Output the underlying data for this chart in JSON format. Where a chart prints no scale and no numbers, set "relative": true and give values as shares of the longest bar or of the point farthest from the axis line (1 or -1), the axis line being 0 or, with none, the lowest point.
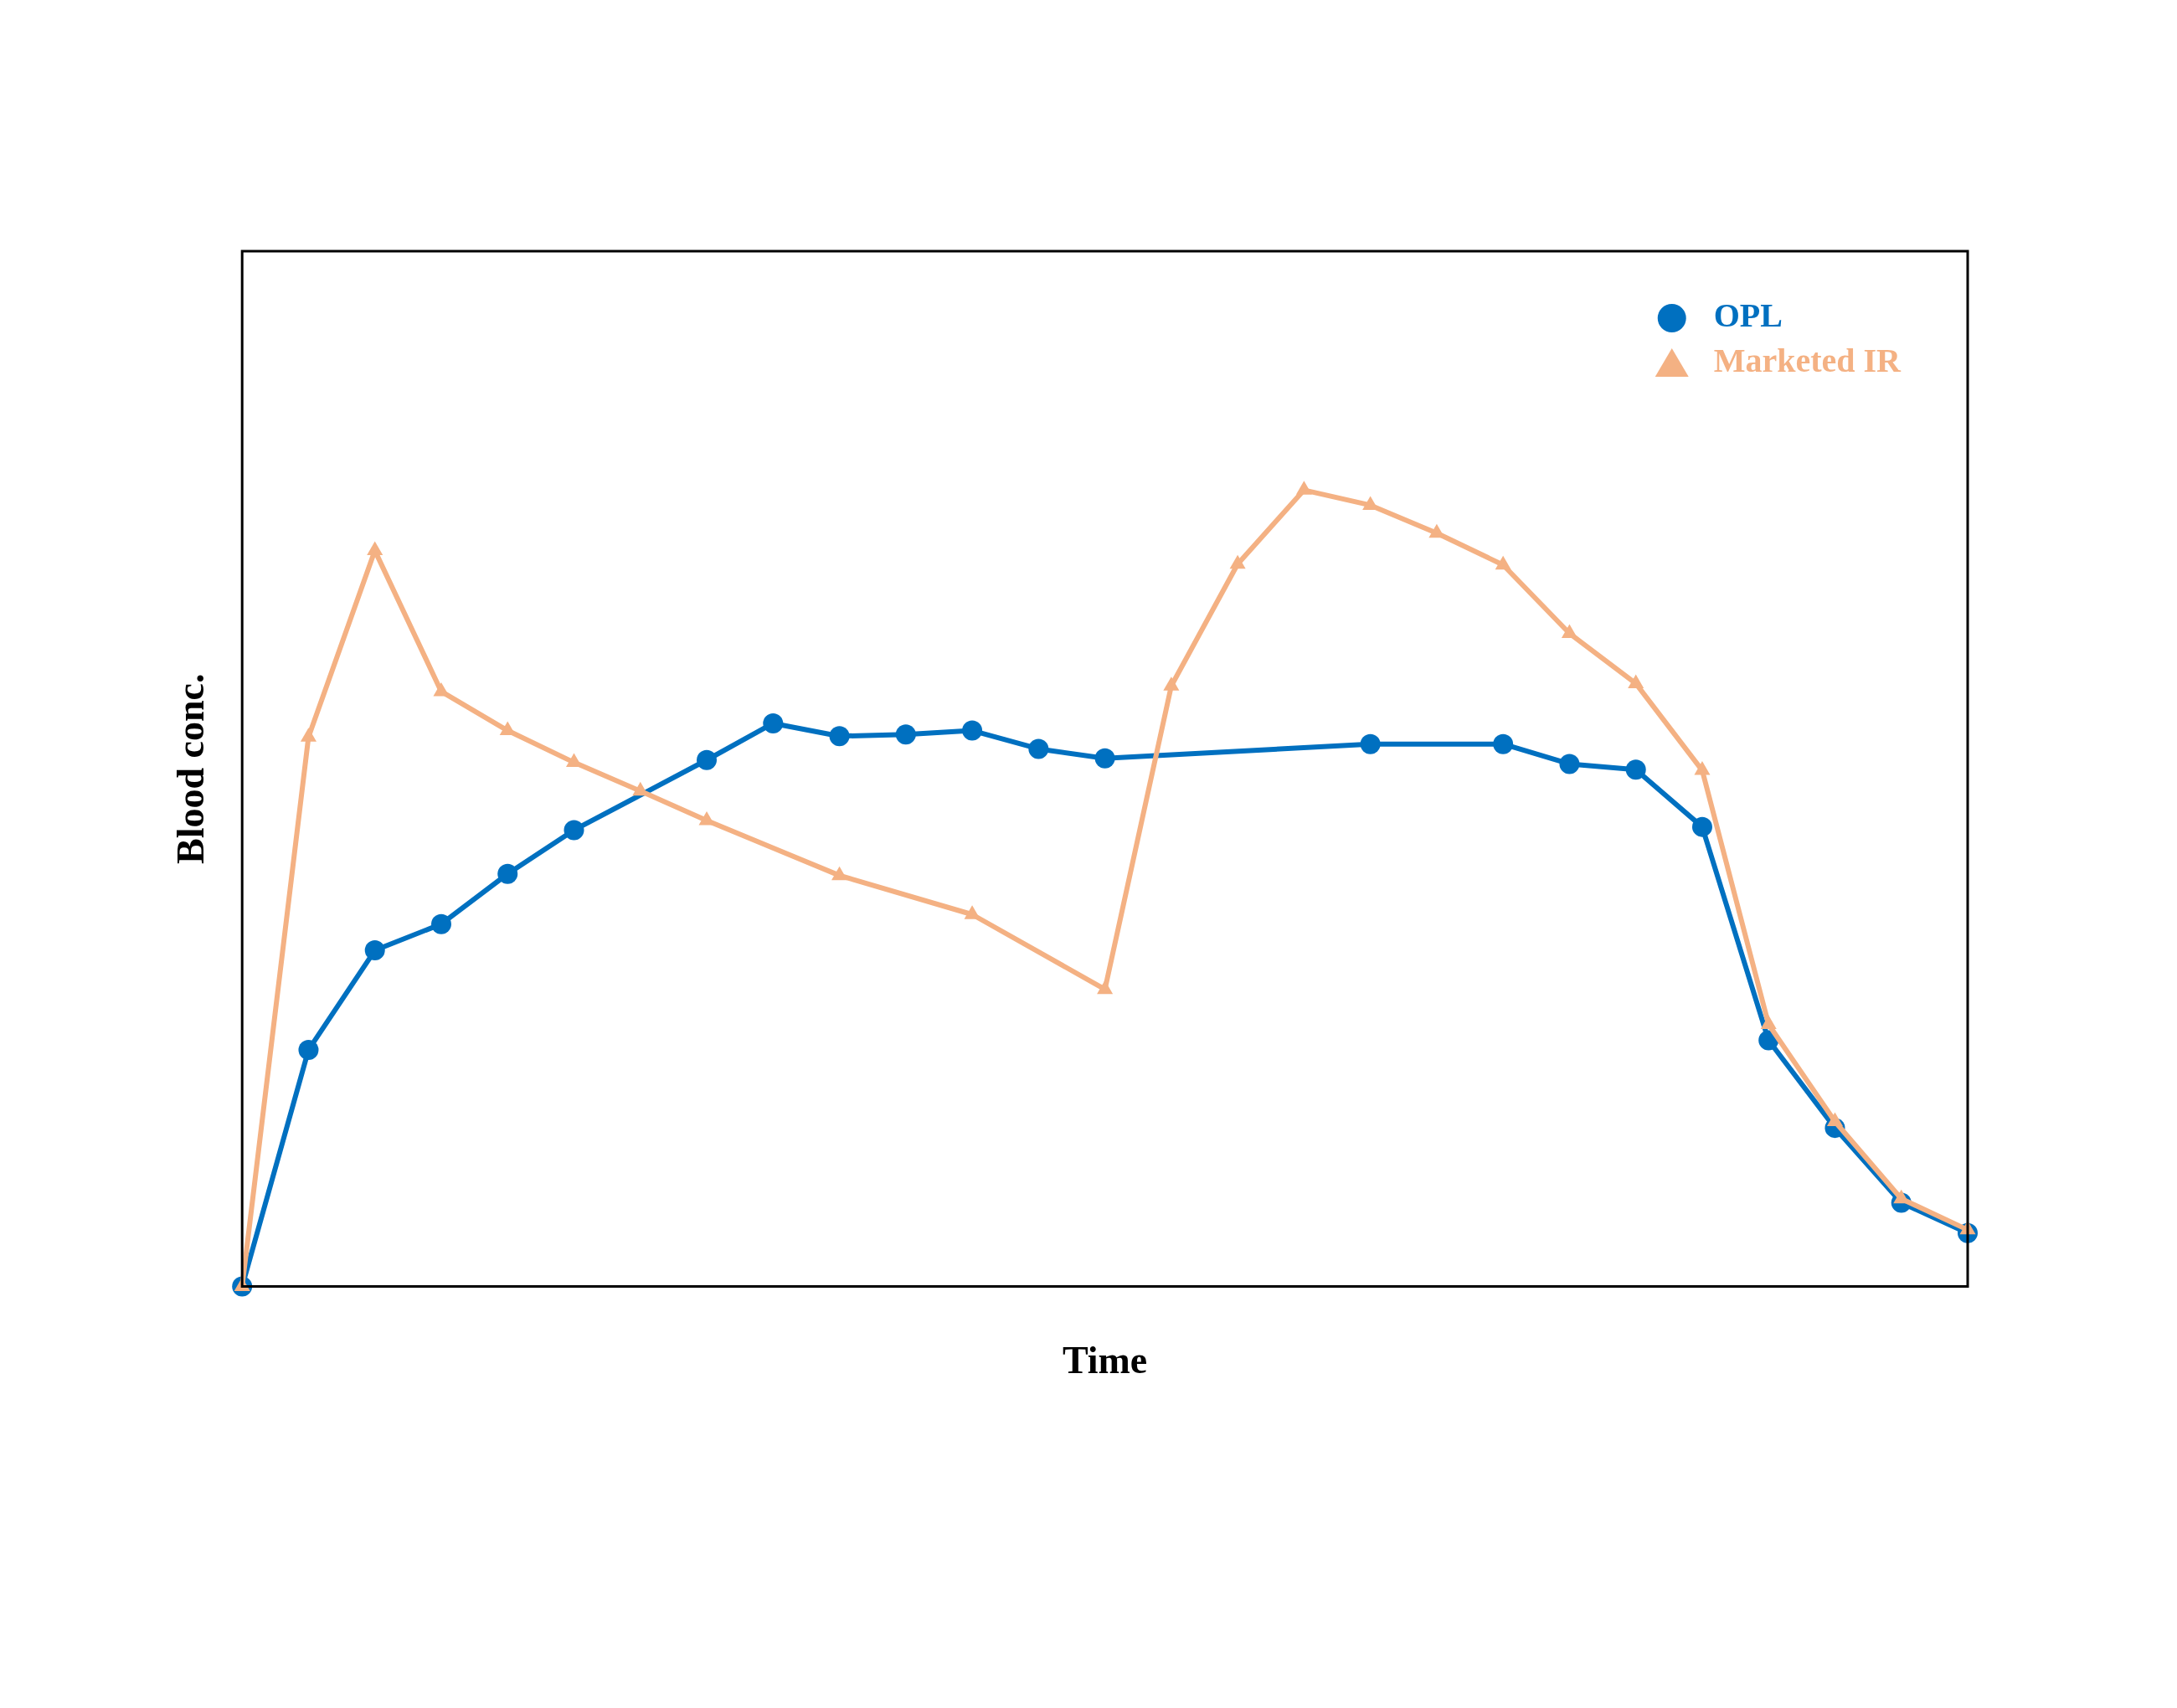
{
  "chart_data": {
    "type": "line",
    "xlabel": "Time",
    "ylabel": "Blood conc.",
    "relative": true,
    "grid": false,
    "legend": "top right",
    "categories": [
      null,
      null,
      null,
      null,
      null,
      null,
      null,
      null,
      null,
      null,
      null,
      null,
      null,
      null,
      null,
      null,
      null,
      null,
      null,
      null,
      null,
      null,
      null,
      null,
      null,
      null,
      null
    ],
    "series": [
      {
        "name": "OPL",
        "color": "#0070c0",
        "marker": "circle",
        "values": [
          0,
          0.297,
          0.422,
          0.455,
          0.518,
          0.573,
          null,
          0.661,
          0.707,
          0.691,
          0.693,
          0.698,
          0.675,
          0.663,
          null,
          null,
          null,
          0.681,
          null,
          0.681,
          0.656,
          0.649,
          0.577,
          0.309,
          0.199,
          0.105,
          0.067
        ]
      },
      {
        "name": "Marketed IR",
        "color": "#f4b183",
        "marker": "triangle",
        "values": [
          0,
          0.69,
          0.924,
          0.747,
          0.698,
          0.658,
          0.622,
          0.585,
          null,
          0.516,
          null,
          0.467,
          null,
          0.373,
          0.754,
          0.907,
          1,
          0.981,
          0.946,
          0.906,
          0.82,
          0.757,
          0.648,
          0.329,
          0.207,
          0.11,
          0.071
        ]
      }
    ]
  }
}
